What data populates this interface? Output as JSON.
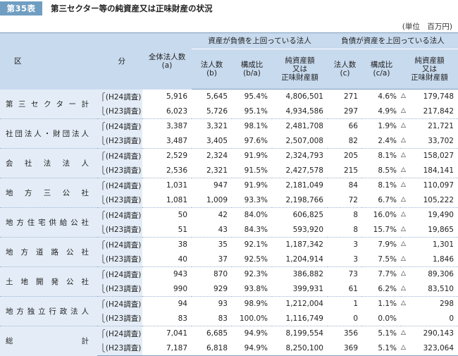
{
  "header": {
    "badge": "第35表",
    "title": "第三セクター等の純資産又は正味財産の状況",
    "unit": "(単位　百万円)"
  },
  "columns": {
    "ku": "区",
    "bun": "分",
    "total": "全体法人数\n(a)",
    "group_asset": "資産が負債を上回っている法人",
    "group_debt": "負債が資産を上回っている法人",
    "b_count": "法人数\n(b)",
    "b_ratio": "構成比\n(b/a)",
    "b_net": "純資産額\n又は\n正味財産額",
    "c_count": "法人数\n(c)",
    "c_ratio": "構成比\n(c/a)",
    "c_net": "純資産額\n又は\n正味財産額"
  },
  "rows": [
    {
      "name": "第三セクター計",
      "year": "(H24調査)",
      "total": "5,916",
      "b_count": "5,645",
      "b_ratio": "95.4%",
      "b_net": "4,806,501",
      "c_count": "271",
      "c_ratio": "4.6%",
      "c_net": "179,748",
      "c_neg": "△"
    },
    {
      "name": "",
      "year": "(H23調査)",
      "total": "6,023",
      "b_count": "5,726",
      "b_ratio": "95.1%",
      "b_net": "4,934,586",
      "c_count": "297",
      "c_ratio": "4.9%",
      "c_net": "217,842",
      "c_neg": "△"
    },
    {
      "name": "社団法人・財団法人",
      "year": "(H24調査)",
      "total": "3,387",
      "b_count": "3,321",
      "b_ratio": "98.1%",
      "b_net": "2,481,708",
      "c_count": "66",
      "c_ratio": "1.9%",
      "c_net": "21,721",
      "c_neg": "△"
    },
    {
      "name": "",
      "year": "(H23調査)",
      "total": "3,487",
      "b_count": "3,405",
      "b_ratio": "97.6%",
      "b_net": "2,507,008",
      "c_count": "82",
      "c_ratio": "2.4%",
      "c_net": "33,702",
      "c_neg": "△"
    },
    {
      "name": "会社法法人",
      "year": "(H24調査)",
      "total": "2,529",
      "b_count": "2,324",
      "b_ratio": "91.9%",
      "b_net": "2,324,793",
      "c_count": "205",
      "c_ratio": "8.1%",
      "c_net": "158,027",
      "c_neg": "△"
    },
    {
      "name": "",
      "year": "(H23調査)",
      "total": "2,536",
      "b_count": "2,321",
      "b_ratio": "91.5%",
      "b_net": "2,427,578",
      "c_count": "215",
      "c_ratio": "8.5%",
      "c_net": "184,141",
      "c_neg": "△"
    },
    {
      "name": "地方三公社",
      "year": "(H24調査)",
      "total": "1,031",
      "b_count": "947",
      "b_ratio": "91.9%",
      "b_net": "2,181,049",
      "c_count": "84",
      "c_ratio": "8.1%",
      "c_net": "110,097",
      "c_neg": "△"
    },
    {
      "name": "",
      "year": "(H23調査)",
      "total": "1,081",
      "b_count": "1,009",
      "b_ratio": "93.3%",
      "b_net": "2,198,766",
      "c_count": "72",
      "c_ratio": "6.7%",
      "c_net": "105,222",
      "c_neg": "△"
    },
    {
      "name": "地方住宅供給公社",
      "year": "(H24調査)",
      "total": "50",
      "b_count": "42",
      "b_ratio": "84.0%",
      "b_net": "606,825",
      "c_count": "8",
      "c_ratio": "16.0%",
      "c_net": "19,490",
      "c_neg": "△"
    },
    {
      "name": "",
      "year": "(H23調査)",
      "total": "51",
      "b_count": "43",
      "b_ratio": "84.3%",
      "b_net": "593,920",
      "c_count": "8",
      "c_ratio": "15.7%",
      "c_net": "19,865",
      "c_neg": "△"
    },
    {
      "name": "地方道路公社",
      "year": "(H24調査)",
      "total": "38",
      "b_count": "35",
      "b_ratio": "92.1%",
      "b_net": "1,187,342",
      "c_count": "3",
      "c_ratio": "7.9%",
      "c_net": "1,301",
      "c_neg": "△"
    },
    {
      "name": "",
      "year": "(H23調査)",
      "total": "40",
      "b_count": "37",
      "b_ratio": "92.5%",
      "b_net": "1,204,914",
      "c_count": "3",
      "c_ratio": "7.5%",
      "c_net": "1,846",
      "c_neg": "△"
    },
    {
      "name": "土地開発公社",
      "year": "(H24調査)",
      "total": "943",
      "b_count": "870",
      "b_ratio": "92.3%",
      "b_net": "386,882",
      "c_count": "73",
      "c_ratio": "7.7%",
      "c_net": "89,306",
      "c_neg": "△"
    },
    {
      "name": "",
      "year": "(H23調査)",
      "total": "990",
      "b_count": "929",
      "b_ratio": "93.8%",
      "b_net": "399,931",
      "c_count": "61",
      "c_ratio": "6.2%",
      "c_net": "83,510",
      "c_neg": "△"
    },
    {
      "name": "地方独立行政法人",
      "year": "(H24調査)",
      "total": "94",
      "b_count": "93",
      "b_ratio": "98.9%",
      "b_net": "1,212,004",
      "c_count": "1",
      "c_ratio": "1.1%",
      "c_net": "298",
      "c_neg": "△"
    },
    {
      "name": "",
      "year": "(H23調査)",
      "total": "83",
      "b_count": "83",
      "b_ratio": "100.0%",
      "b_net": "1,116,749",
      "c_count": "0",
      "c_ratio": "0.0%",
      "c_net": "0",
      "c_neg": ""
    },
    {
      "name": "総計",
      "year": "(H24調査)",
      "total": "7,041",
      "b_count": "6,685",
      "b_ratio": "94.9%",
      "b_net": "8,199,554",
      "c_count": "356",
      "c_ratio": "5.1%",
      "c_net": "290,143",
      "c_neg": "△"
    },
    {
      "name": "",
      "year": "(H23調査)",
      "total": "7,187",
      "b_count": "6,818",
      "b_ratio": "94.9%",
      "b_net": "8,250,100",
      "c_count": "369",
      "c_ratio": "5.1%",
      "c_net": "323,064",
      "c_neg": "△"
    }
  ]
}
